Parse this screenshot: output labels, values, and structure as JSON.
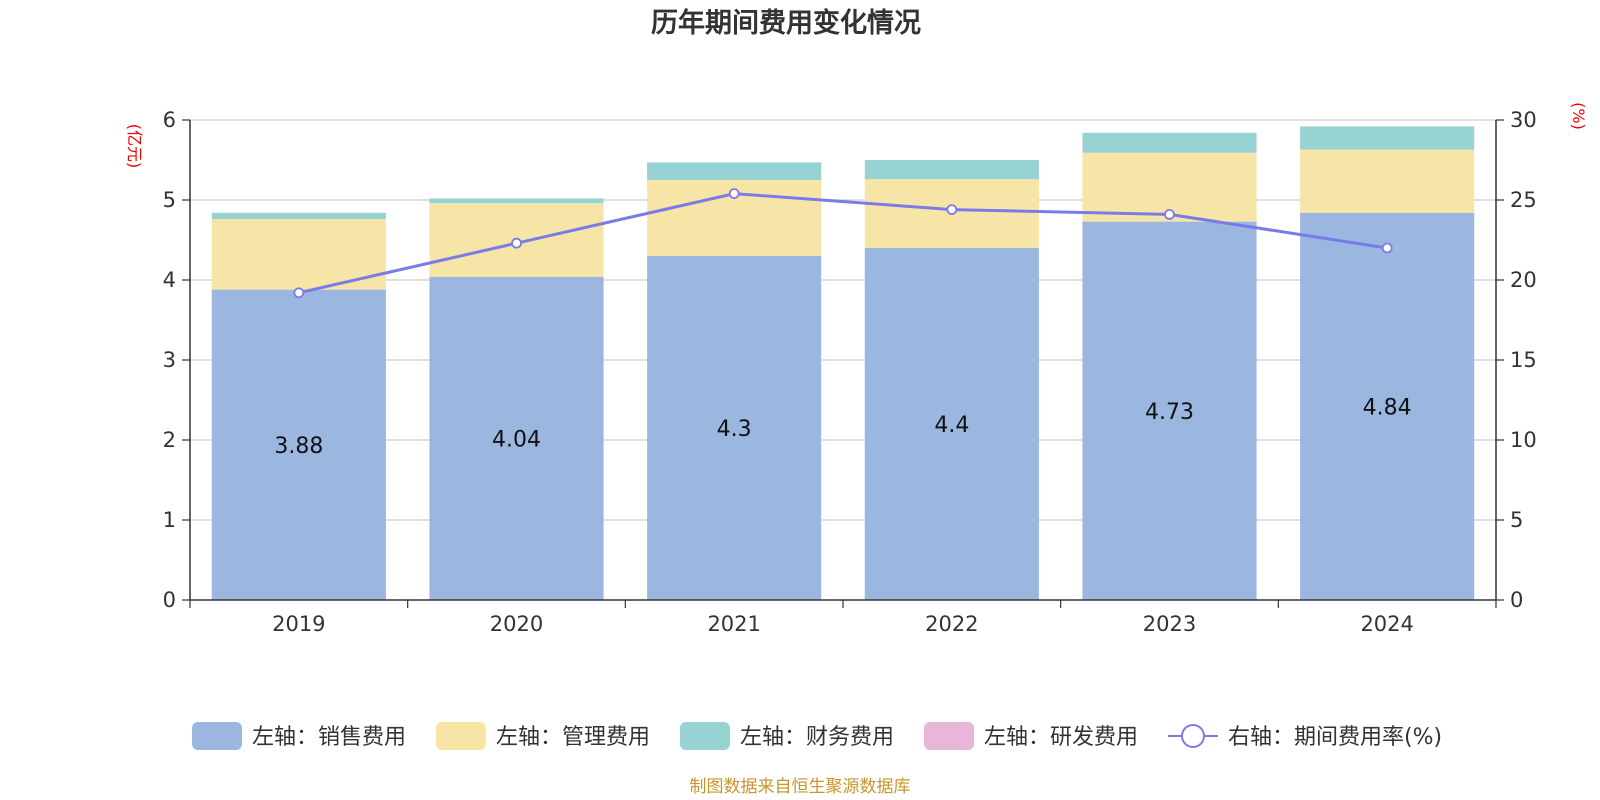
{
  "chart_data": {
    "type": "bar",
    "title": "历年期间费用变化情况",
    "categories": [
      "2019",
      "2020",
      "2021",
      "2022",
      "2023",
      "2024"
    ],
    "left_axis": {
      "unit": "(亿元)",
      "ylim": [
        0,
        6
      ],
      "ticks": [
        0,
        1,
        2,
        3,
        4,
        5,
        6
      ]
    },
    "right_axis": {
      "unit": "(%)",
      "ylim": [
        0,
        30
      ],
      "ticks": [
        0,
        5,
        10,
        15,
        20,
        25,
        30
      ]
    },
    "series": [
      {
        "name": "左轴：销售费用",
        "kind": "bar",
        "axis": "left",
        "color": "#9bb7e0",
        "values": [
          3.88,
          4.04,
          4.3,
          4.4,
          4.73,
          4.84
        ],
        "labels": [
          "3.88",
          "4.04",
          "4.3",
          "4.4",
          "4.73",
          "4.84"
        ]
      },
      {
        "name": "左轴：管理费用",
        "kind": "bar",
        "axis": "left",
        "color": "#f7e5a8",
        "values": [
          0.88,
          0.92,
          0.95,
          0.86,
          0.86,
          0.79
        ]
      },
      {
        "name": "左轴：财务费用",
        "kind": "bar",
        "axis": "left",
        "color": "#98d3d3",
        "values": [
          0.08,
          0.06,
          0.22,
          0.24,
          0.25,
          0.29
        ]
      },
      {
        "name": "左轴：研发费用",
        "kind": "bar",
        "axis": "left",
        "color": "#e7b6d8",
        "values": [
          0,
          0,
          0,
          0,
          0,
          0
        ]
      },
      {
        "name": "右轴：期间费用率(%)",
        "kind": "line",
        "axis": "right",
        "color": "#7b7be8",
        "values": [
          19.2,
          22.3,
          25.4,
          24.4,
          24.1,
          22.0
        ]
      }
    ],
    "grid": true,
    "legend_position": "bottom"
  },
  "footer": {
    "source": "制图数据来自恒生聚源数据库"
  }
}
